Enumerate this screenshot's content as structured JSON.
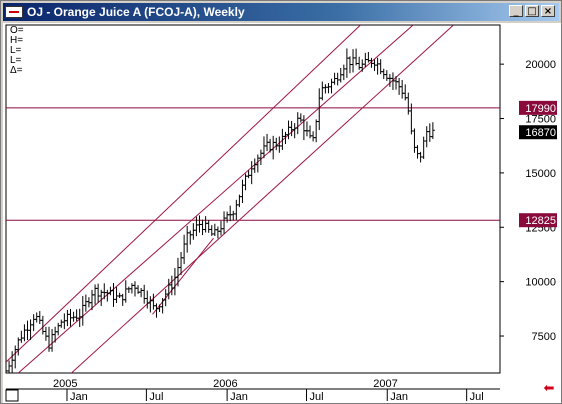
{
  "window": {
    "title": "OJ - Orange Juice A (FCOJ-A), Weekly",
    "buttons": [
      "_",
      "□",
      "×"
    ]
  },
  "ohlc_labels": [
    "O=",
    "H=",
    "L=",
    "L=",
    "Δ="
  ],
  "chart_data": {
    "type": "ohlc",
    "title": "OJ - Orange Juice A (FCOJ-A), Weekly",
    "frequency": "weekly",
    "y_ticks": [
      7500,
      10000,
      12500,
      15000,
      17500,
      20000
    ],
    "y_tick_labels": [
      "7500",
      "10000",
      "12500",
      "15000",
      "17500",
      "20000"
    ],
    "x_year_labels": [
      {
        "date": "2005-01",
        "label": "2005"
      },
      {
        "date": "2006-01",
        "label": "2006"
      },
      {
        "date": "2007-01",
        "label": "2007"
      }
    ],
    "x_month_labels": [
      {
        "date": "2005-01",
        "label": "Jan"
      },
      {
        "date": "2005-07",
        "label": "Jul"
      },
      {
        "date": "2006-01",
        "label": "Jan"
      },
      {
        "date": "2006-07",
        "label": "Jul"
      },
      {
        "date": "2007-01",
        "label": "Jan"
      },
      {
        "date": "2007-07",
        "label": "Jul"
      }
    ],
    "x_range": [
      "2004-08-15",
      "2007-09-15"
    ],
    "y_range": [
      5800,
      21800
    ],
    "horizontal_lines": [
      {
        "value": 17990,
        "label": "17990",
        "color": "#8b0a3c"
      },
      {
        "value": 12825,
        "label": "12825",
        "color": "#8b0a3c"
      }
    ],
    "last_price": {
      "value": 16870,
      "label": "16870"
    },
    "channel_lines": [
      {
        "x1": "2004-08-15",
        "y1": 6300,
        "x2": "2006-11-01",
        "y2": 21800
      },
      {
        "x1": "2004-08-15",
        "y1": 5300,
        "x2": "2007-03-01",
        "y2": 21800
      },
      {
        "x1": "2004-12-15",
        "y1": 5300,
        "x2": "2007-06-01",
        "y2": 21800
      },
      {
        "x1": "2005-07-15",
        "y1": 8500,
        "x2": "2005-12-01",
        "y2": 12000
      }
    ],
    "series": [
      {
        "anchors": [
          [
            "2004-08-15",
            5900
          ],
          [
            "2004-09-15",
            7400
          ],
          [
            "2004-10-20",
            8500
          ],
          [
            "2004-11-20",
            7100
          ],
          [
            "2004-12-20",
            8200
          ],
          [
            "2005-02-01",
            8500
          ],
          [
            "2005-03-01",
            9600
          ],
          [
            "2005-04-01",
            9500
          ],
          [
            "2005-05-01",
            9200
          ],
          [
            "2005-06-01",
            9900
          ],
          [
            "2005-07-01",
            9300
          ],
          [
            "2005-07-20",
            8700
          ],
          [
            "2005-09-01",
            10000
          ],
          [
            "2005-10-01",
            12000
          ],
          [
            "2005-11-01",
            12700
          ],
          [
            "2005-12-01",
            12100
          ],
          [
            "2006-01-15",
            13300
          ],
          [
            "2006-03-01",
            15500
          ],
          [
            "2006-04-01",
            16200
          ],
          [
            "2006-05-01",
            16400
          ],
          [
            "2006-06-15",
            17500
          ],
          [
            "2006-07-15",
            16300
          ],
          [
            "2006-08-01",
            18800
          ],
          [
            "2006-09-01",
            19200
          ],
          [
            "2006-10-01",
            20200
          ],
          [
            "2006-11-01",
            19900
          ],
          [
            "2006-12-01",
            20200
          ],
          [
            "2007-01-01",
            19500
          ],
          [
            "2007-02-01",
            18900
          ],
          [
            "2007-02-15",
            18300
          ],
          [
            "2007-03-01",
            16200
          ],
          [
            "2007-03-15",
            15600
          ],
          [
            "2007-04-01",
            16900
          ],
          [
            "2007-04-15",
            16870
          ]
        ]
      }
    ],
    "grid": false
  },
  "colors": {
    "plot_bg": "#ffffff",
    "channel": "#a01442",
    "level": "#8b0a3c",
    "label_bg": "#8b0a3c",
    "last_bg": "#000000",
    "bars": "#000000"
  },
  "nav": {
    "scroll_arrow": "⬅"
  }
}
